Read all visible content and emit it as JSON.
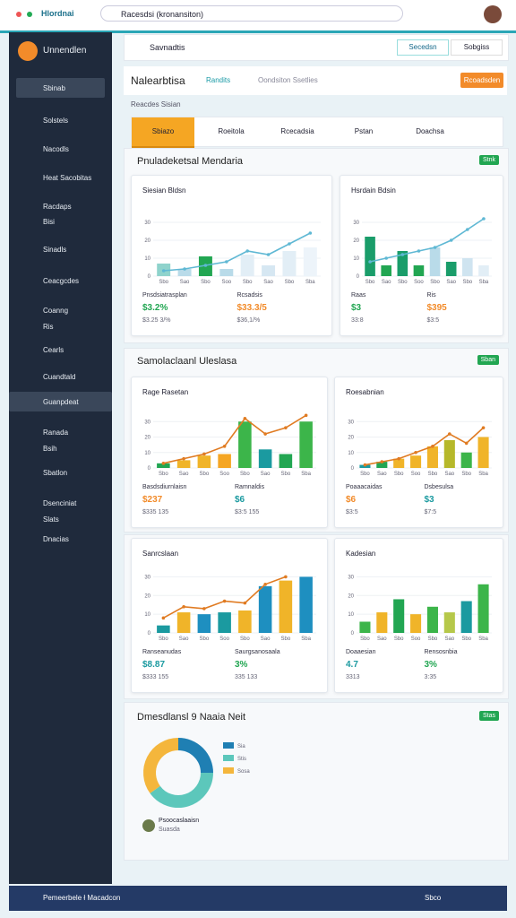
{
  "topbar": {
    "brand": "Hlordnai",
    "search": "Racesdsi (kronansiton)"
  },
  "sidebar": {
    "user": "Unnendlen",
    "items": [
      "Sbinab",
      "Solstels",
      "Nacodls",
      "Heat Sacobitas",
      "Racdaps",
      "Bisi",
      "Sinadls",
      "Ceacgcdes",
      "Coanng",
      "Ris",
      "Cearls",
      "Cuandtald",
      "Guanpdeat",
      "Ranada",
      "Bsih",
      "Sbatlon",
      "Dsenciniat",
      "Slats",
      "Dnacias"
    ]
  },
  "toolbar": {
    "search": "Savnadtis",
    "buttons": [
      "Secedsn",
      "Sobgiss"
    ]
  },
  "header": {
    "title": "Nalearbtisa",
    "link": "Randits",
    "filter": "Oondsiton Ssetlies",
    "button": "Rcoadsden",
    "subtitle": "Reacdes Sisian"
  },
  "tabs": [
    "Sbiazo",
    "Roeitola",
    "Rcecadsia",
    "Pstan",
    "Doachsa"
  ],
  "sections": [
    {
      "title": "Pnuladeketsal Mendaria",
      "badge": "Stnk",
      "cards": [
        {
          "title": "Siesian Bldsn",
          "ylim": [
            0,
            40
          ],
          "yticks": [
            0,
            10,
            20,
            30
          ],
          "categories": [
            "Sbo",
            "Sao",
            "Sbo",
            "Soo",
            "Sbo",
            "Sao",
            "Sbo",
            "Sba"
          ],
          "bars": [
            7,
            4,
            11,
            4,
            12,
            6,
            14,
            16
          ],
          "colors": [
            "#8fd3cc",
            "#b9dbe9",
            "#22a652",
            "#b9dbe9",
            "#e2eef6",
            "#d6e7f2",
            "#e2eef6",
            "#edf4fa"
          ],
          "line": [
            3,
            4,
            6,
            8,
            14,
            12,
            18,
            24
          ],
          "line_color": "#5fb8d4",
          "stats": [
            {
              "label": "Pnsdsiatrasplan",
              "value": "$3.2%",
              "note": "$3.25 3/%"
            },
            {
              "label": "Rcsadsis",
              "value": "$33.3/5",
              "note": "$36,1/%"
            }
          ]
        },
        {
          "title": "Hsrdain Bdsin",
          "ylim": [
            0,
            40
          ],
          "yticks": [
            0,
            10,
            20,
            30
          ],
          "categories": [
            "Sbo",
            "Sao",
            "Sbo",
            "Soo",
            "Sbo",
            "Sao",
            "Sbo",
            "Sba"
          ],
          "bars": [
            22,
            6,
            14,
            6,
            16,
            8,
            10,
            6
          ],
          "colors": [
            "#1a9d6a",
            "#22a652",
            "#1a9d6a",
            "#22a652",
            "#b9dbe9",
            "#1a9d6a",
            "#cfe4f0",
            "#e2eef6"
          ],
          "line": [
            8,
            10,
            12,
            14,
            16,
            20,
            26,
            32
          ],
          "line_color": "#5fb8d4",
          "stats": [
            {
              "label": "Raas",
              "value": "$3",
              "note": "33:8"
            },
            {
              "label": "Ris",
              "value": "$395",
              "note": "$3:5"
            }
          ]
        }
      ]
    },
    {
      "title": "Samolaclaanl Uleslasa",
      "badge": "Sban",
      "cards": [
        {
          "title": "Rage Rasetan",
          "ylim": [
            0,
            40
          ],
          "yticks": [
            0,
            10,
            20,
            30
          ],
          "categories": [
            "Sbo",
            "Sao",
            "Sbo",
            "Soo",
            "Sbo",
            "Sao",
            "Sbo",
            "Sba"
          ],
          "bars": [
            3,
            5,
            8,
            9,
            30,
            12,
            9,
            30
          ],
          "colors": [
            "#22a652",
            "#f0b429",
            "#f0b429",
            "#f5a623",
            "#3cb54a",
            "#1b9aa0",
            "#22a652",
            "#3cb54a"
          ],
          "line": [
            3,
            6,
            9,
            14,
            32,
            22,
            26,
            34
          ],
          "line_color": "#e07b22",
          "stats": [
            {
              "label": "Basdsdiurnlaisn",
              "value": "$237",
              "note": "$335 135"
            },
            {
              "label": "Ramnaldis",
              "value": "$6",
              "note": "$3:5 155"
            }
          ]
        },
        {
          "title": "Roesabnian",
          "ylim": [
            0,
            40
          ],
          "yticks": [
            0,
            10,
            20,
            30
          ],
          "categories": [
            "Sbo",
            "Sao",
            "Sbo",
            "Soo",
            "Sbo",
            "Sao",
            "Sbo",
            "Sba"
          ],
          "bars": [
            2,
            4,
            6,
            8,
            14,
            18,
            10,
            20
          ],
          "colors": [
            "#1b9aa0",
            "#22a652",
            "#f0b429",
            "#f0b429",
            "#f0b429",
            "#b6b82a",
            "#3cb54a",
            "#f0b429"
          ],
          "line": [
            2,
            4,
            6,
            10,
            14,
            22,
            16,
            26
          ],
          "line_color": "#e07b22",
          "stats": [
            {
              "label": "Poaaacaidas",
              "value": "$6",
              "note": "$3:5"
            },
            {
              "label": "Dsbesulsa",
              "value": "$3",
              "note": "$7:5"
            }
          ]
        }
      ]
    },
    {
      "title": null,
      "badge": null,
      "cards": [
        {
          "title": "Sanrcslaan",
          "ylim": [
            0,
            35
          ],
          "yticks": [
            0,
            10,
            20,
            30
          ],
          "categories": [
            "Sbo",
            "Sao",
            "Sbo",
            "Soo",
            "Sbo",
            "Sao",
            "Sbo",
            "Sba"
          ],
          "bars": [
            4,
            11,
            10,
            11,
            12,
            25,
            28,
            30
          ],
          "colors": [
            "#1b9aa0",
            "#f0b429",
            "#1e8fc0",
            "#1b9aa0",
            "#f0b429",
            "#1e8fc0",
            "#f0b429",
            "#1e8fc0"
          ],
          "line": [
            8,
            14,
            13,
            17,
            16,
            26,
            30,
            null
          ],
          "line_color": "#e07b22",
          "stats": [
            {
              "label": "Ranseanudas",
              "value": "$8.87",
              "note": "$333 155"
            },
            {
              "label": "Saurgsanosaala",
              "value": "3%",
              "note": "335 133"
            }
          ]
        },
        {
          "title": "Kadesian",
          "ylim": [
            0,
            35
          ],
          "yticks": [
            0,
            10,
            20,
            30
          ],
          "categories": [
            "Sbo",
            "Sao",
            "Sbo",
            "Soo",
            "Sbo",
            "Sao",
            "Sbo",
            "Sba"
          ],
          "bars": [
            6,
            11,
            18,
            10,
            14,
            11,
            17,
            26
          ],
          "colors": [
            "#3cb54a",
            "#f0b429",
            "#22a652",
            "#f0b429",
            "#3cb54a",
            "#b6c84a",
            "#1b9aa0",
            "#3cb54a"
          ],
          "line": null,
          "line_color": null,
          "stats": [
            {
              "label": "Doaaesian",
              "value": "4.7",
              "note": "3313"
            },
            {
              "label": "Rensosnbia",
              "value": "3%",
              "note": "3:35"
            }
          ]
        }
      ]
    }
  ],
  "donut_section": {
    "title": "Dmesdlansl 9 Naaia Neit",
    "badge": "Stas",
    "segments": [
      {
        "name": "Sia",
        "value": 25,
        "color": "#1f7fb3"
      },
      {
        "name": "Stis",
        "value": 40,
        "color": "#5cc7bb"
      },
      {
        "name": "Sosa",
        "value": 35,
        "color": "#f4b63c"
      }
    ],
    "caption": {
      "name": "Psoocaslaaisn",
      "sub": "Suasda"
    }
  },
  "taskbar": {
    "title": "Pemeerbele ł Macadcon",
    "status": "Sbco"
  }
}
